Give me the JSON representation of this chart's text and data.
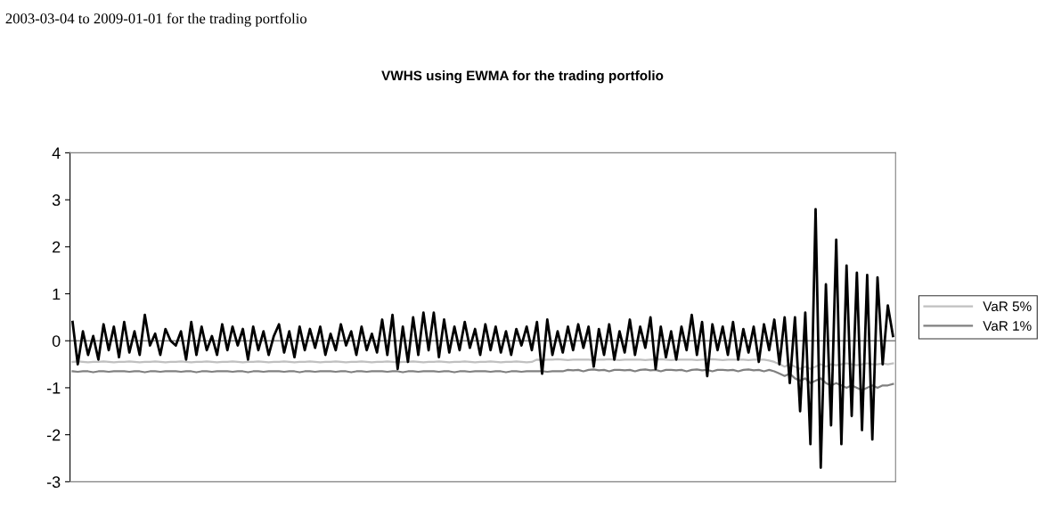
{
  "chart_data": {
    "type": "line",
    "title": "VWHS using EWMA for the trading portfolio",
    "annotations": [
      "2003-03-04 to 2009-01-01 for the trading portfolio"
    ],
    "categories": [
      null,
      null,
      null,
      null,
      null,
      null,
      null,
      null,
      null,
      null,
      null,
      null,
      null,
      null,
      null,
      null,
      null,
      null,
      null,
      null,
      null,
      null,
      null,
      null,
      null,
      null,
      null,
      null,
      null,
      null,
      null,
      null,
      null,
      null,
      null,
      null,
      null,
      null,
      null,
      null,
      null,
      null,
      null,
      null,
      null,
      null,
      null,
      null,
      null,
      null,
      null,
      null,
      null,
      null,
      null,
      null,
      null,
      null,
      null,
      null,
      null,
      null,
      null,
      null,
      null,
      null,
      null,
      null,
      null,
      null,
      null,
      null,
      null,
      null,
      null,
      null,
      null,
      null,
      null,
      null,
      null,
      null,
      null,
      null,
      null,
      null,
      null,
      null,
      null,
      null,
      null,
      null,
      null,
      null,
      null,
      null,
      null,
      null,
      null,
      null,
      null,
      null,
      null,
      null,
      null,
      null,
      null,
      null,
      null,
      null,
      null,
      null,
      null,
      null,
      null,
      null,
      null,
      null,
      null,
      null,
      null,
      null,
      null,
      null,
      null,
      null,
      null,
      null,
      null,
      null,
      null,
      null,
      null,
      null,
      null,
      null,
      null,
      null,
      null,
      null,
      null,
      null,
      null,
      null,
      null,
      null,
      null,
      null,
      null,
      null,
      null,
      null,
      null,
      null,
      null,
      null,
      null,
      null,
      null,
      null
    ],
    "series": [
      {
        "color": "#000000",
        "values": [
          0.4,
          -0.5,
          0.2,
          -0.3,
          0.1,
          -0.4,
          0.35,
          -0.2,
          0.3,
          -0.35,
          0.4,
          -0.25,
          0.2,
          -0.3,
          0.55,
          -0.1,
          0.15,
          -0.3,
          0.25,
          0.0,
          -0.1,
          0.2,
          -0.4,
          0.4,
          -0.3,
          0.3,
          -0.2,
          0.1,
          -0.3,
          0.35,
          -0.2,
          0.3,
          -0.1,
          0.25,
          -0.4,
          0.3,
          -0.2,
          0.2,
          -0.3,
          0.1,
          0.35,
          -0.25,
          0.2,
          -0.35,
          0.3,
          -0.2,
          0.25,
          -0.15,
          0.3,
          -0.3,
          0.15,
          -0.2,
          0.35,
          -0.1,
          0.2,
          -0.3,
          0.3,
          -0.2,
          0.15,
          -0.25,
          0.45,
          -0.3,
          0.55,
          -0.6,
          0.3,
          -0.45,
          0.5,
          -0.3,
          0.6,
          -0.2,
          0.6,
          -0.35,
          0.45,
          -0.25,
          0.3,
          -0.2,
          0.4,
          -0.15,
          0.25,
          -0.3,
          0.35,
          -0.2,
          0.3,
          -0.25,
          0.2,
          -0.3,
          0.25,
          -0.1,
          0.3,
          -0.2,
          0.4,
          -0.7,
          0.45,
          -0.3,
          0.2,
          -0.25,
          0.3,
          -0.2,
          0.35,
          -0.15,
          0.3,
          -0.55,
          0.25,
          -0.3,
          0.35,
          -0.4,
          0.2,
          -0.25,
          0.45,
          -0.3,
          0.3,
          -0.15,
          0.5,
          -0.6,
          0.3,
          -0.35,
          0.2,
          -0.4,
          0.3,
          -0.2,
          0.55,
          -0.3,
          0.4,
          -0.75,
          0.35,
          -0.2,
          0.3,
          -0.3,
          0.4,
          -0.4,
          0.25,
          -0.25,
          0.3,
          -0.45,
          0.35,
          -0.2,
          0.45,
          -0.5,
          0.5,
          -0.9,
          0.5,
          -1.5,
          0.6,
          -2.2,
          2.8,
          -2.7,
          1.2,
          -1.8,
          2.15,
          -2.2,
          1.6,
          -1.6,
          1.45,
          -1.9,
          1.4,
          -2.1,
          1.35,
          -0.5,
          0.75,
          0.1
        ]
      },
      {
        "name": "VaR 5%",
        "color": "#c0c0c0",
        "values": [
          -0.45,
          -0.44,
          -0.45,
          -0.46,
          -0.45,
          -0.45,
          -0.44,
          -0.45,
          -0.46,
          -0.45,
          -0.45,
          -0.44,
          -0.45,
          -0.46,
          -0.45,
          -0.45,
          -0.44,
          -0.45,
          -0.46,
          -0.45,
          -0.45,
          -0.44,
          -0.45,
          -0.46,
          -0.45,
          -0.45,
          -0.44,
          -0.45,
          -0.46,
          -0.45,
          -0.45,
          -0.44,
          -0.45,
          -0.46,
          -0.45,
          -0.45,
          -0.44,
          -0.45,
          -0.46,
          -0.45,
          -0.45,
          -0.44,
          -0.45,
          -0.46,
          -0.45,
          -0.45,
          -0.44,
          -0.45,
          -0.46,
          -0.45,
          -0.45,
          -0.44,
          -0.45,
          -0.46,
          -0.45,
          -0.45,
          -0.44,
          -0.45,
          -0.46,
          -0.45,
          -0.45,
          -0.44,
          -0.45,
          -0.46,
          -0.45,
          -0.45,
          -0.44,
          -0.45,
          -0.46,
          -0.45,
          -0.45,
          -0.44,
          -0.45,
          -0.46,
          -0.45,
          -0.45,
          -0.44,
          -0.45,
          -0.46,
          -0.45,
          -0.45,
          -0.44,
          -0.45,
          -0.46,
          -0.45,
          -0.45,
          -0.44,
          -0.45,
          -0.46,
          -0.45,
          -0.4,
          -0.41,
          -0.4,
          -0.4,
          -0.39,
          -0.4,
          -0.41,
          -0.4,
          -0.4,
          -0.4,
          -0.4,
          -0.41,
          -0.4,
          -0.4,
          -0.39,
          -0.4,
          -0.41,
          -0.4,
          -0.4,
          -0.4,
          -0.4,
          -0.41,
          -0.4,
          -0.4,
          -0.39,
          -0.4,
          -0.41,
          -0.4,
          -0.4,
          -0.4,
          -0.4,
          -0.41,
          -0.4,
          -0.4,
          -0.39,
          -0.4,
          -0.41,
          -0.4,
          -0.4,
          -0.4,
          -0.4,
          -0.41,
          -0.4,
          -0.4,
          -0.4,
          -0.42,
          -0.45,
          -0.5,
          -0.55,
          -0.5,
          -0.55,
          -0.6,
          -0.55,
          -0.6,
          -0.55,
          -0.5,
          -0.55,
          -0.5,
          -0.52,
          -0.5,
          -0.48,
          -0.5,
          -0.52,
          -0.5,
          -0.48,
          -0.5,
          -0.5,
          -0.48,
          -0.5,
          -0.48
        ]
      },
      {
        "name": "VaR 1%",
        "color": "#808080",
        "values": [
          -0.65,
          -0.66,
          -0.65,
          -0.65,
          -0.67,
          -0.65,
          -0.65,
          -0.66,
          -0.65,
          -0.65,
          -0.65,
          -0.66,
          -0.65,
          -0.65,
          -0.67,
          -0.65,
          -0.65,
          -0.66,
          -0.65,
          -0.65,
          -0.65,
          -0.66,
          -0.65,
          -0.65,
          -0.67,
          -0.65,
          -0.65,
          -0.66,
          -0.65,
          -0.65,
          -0.65,
          -0.66,
          -0.65,
          -0.65,
          -0.67,
          -0.65,
          -0.65,
          -0.66,
          -0.65,
          -0.65,
          -0.65,
          -0.66,
          -0.65,
          -0.65,
          -0.67,
          -0.65,
          -0.65,
          -0.66,
          -0.65,
          -0.65,
          -0.65,
          -0.66,
          -0.65,
          -0.65,
          -0.67,
          -0.65,
          -0.65,
          -0.66,
          -0.65,
          -0.65,
          -0.65,
          -0.66,
          -0.65,
          -0.65,
          -0.67,
          -0.65,
          -0.65,
          -0.66,
          -0.65,
          -0.65,
          -0.65,
          -0.66,
          -0.65,
          -0.65,
          -0.67,
          -0.65,
          -0.65,
          -0.66,
          -0.65,
          -0.65,
          -0.65,
          -0.66,
          -0.65,
          -0.65,
          -0.67,
          -0.65,
          -0.65,
          -0.66,
          -0.65,
          -0.65,
          -0.65,
          -0.65,
          -0.66,
          -0.65,
          -0.65,
          -0.65,
          -0.62,
          -0.63,
          -0.62,
          -0.65,
          -0.62,
          -0.61,
          -0.63,
          -0.62,
          -0.65,
          -0.62,
          -0.62,
          -0.63,
          -0.62,
          -0.65,
          -0.62,
          -0.61,
          -0.63,
          -0.62,
          -0.65,
          -0.62,
          -0.62,
          -0.63,
          -0.62,
          -0.65,
          -0.62,
          -0.61,
          -0.63,
          -0.62,
          -0.65,
          -0.62,
          -0.62,
          -0.63,
          -0.62,
          -0.65,
          -0.62,
          -0.61,
          -0.63,
          -0.62,
          -0.65,
          -0.62,
          -0.65,
          -0.7,
          -0.75,
          -0.7,
          -0.8,
          -0.85,
          -0.8,
          -0.9,
          -0.85,
          -0.8,
          -0.9,
          -0.95,
          -0.9,
          -0.95,
          -1.0,
          -0.95,
          -1.0,
          -1.05,
          -1.0,
          -0.95,
          -1.0,
          -0.95,
          -0.95,
          -0.92
        ]
      }
    ],
    "ylim": [
      -3,
      4
    ],
    "yticks": [
      -3,
      -2,
      -1,
      0,
      1,
      2,
      3,
      4
    ],
    "ref_lines": [
      {
        "axis": "y",
        "value": 0,
        "color": "#808080"
      }
    ],
    "tick_labels": "y",
    "grid": false,
    "legend": "right",
    "marker": "none",
    "line_style": "solid"
  }
}
